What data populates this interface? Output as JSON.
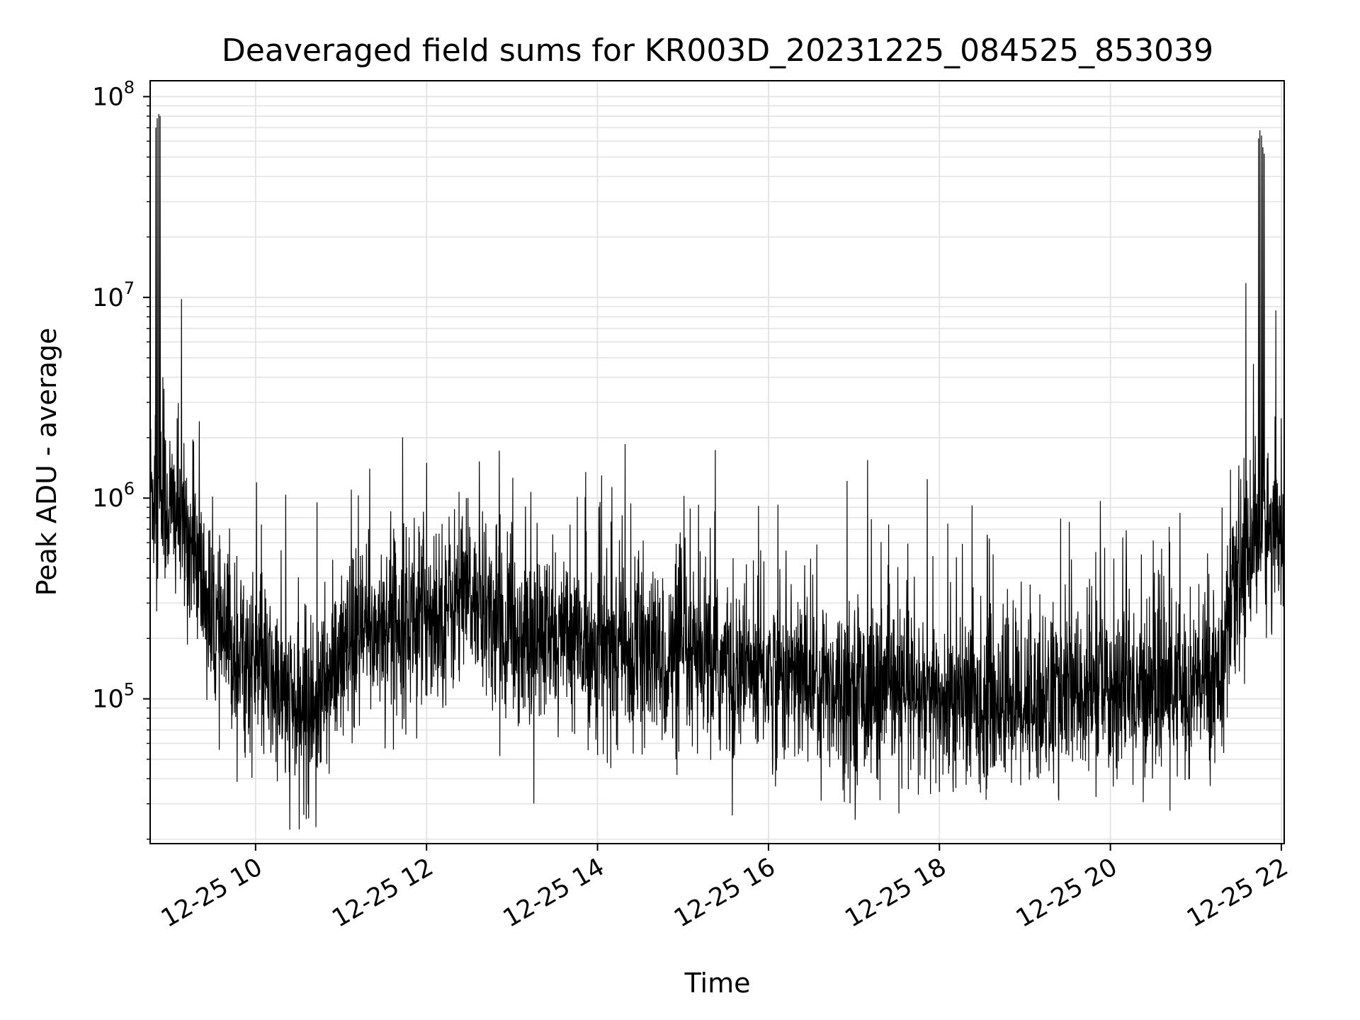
{
  "chart_data": {
    "type": "line",
    "title": "Deaveraged field sums for KR003D_20231225_084525_853039",
    "xlabel": "Time",
    "ylabel": "Peak ADU - average",
    "y_scale": "log",
    "x_range": [
      "2023-12-25 08:46",
      "2023-12-25 22:02"
    ],
    "ylim": [
      19000,
      120000000
    ],
    "grid": true,
    "line_color": "#000000",
    "grid_color": "#e3e3e3",
    "x_ticks": [
      {
        "time": "2023-12-25 10:00",
        "label": "12-25 10"
      },
      {
        "time": "2023-12-25 12:00",
        "label": "12-25 12"
      },
      {
        "time": "2023-12-25 14:00",
        "label": "12-25 14"
      },
      {
        "time": "2023-12-25 16:00",
        "label": "12-25 16"
      },
      {
        "time": "2023-12-25 18:00",
        "label": "12-25 18"
      },
      {
        "time": "2023-12-25 20:00",
        "label": "12-25 20"
      },
      {
        "time": "2023-12-25 22:00",
        "label": "12-25 22"
      }
    ],
    "y_ticks": [
      {
        "value": 100000,
        "base": "10",
        "exp": "5"
      },
      {
        "value": 1000000,
        "base": "10",
        "exp": "6"
      },
      {
        "value": 10000000,
        "base": "10",
        "exp": "7"
      },
      {
        "value": 100000000,
        "base": "10",
        "exp": "8"
      }
    ],
    "series": [
      {
        "median_trend": [
          [
            "2023-12-25 08:46",
            1100000
          ],
          [
            "2023-12-25 09:00",
            900000
          ],
          [
            "2023-12-25 09:10",
            700000
          ],
          [
            "2023-12-25 09:20",
            450000
          ],
          [
            "2023-12-25 09:30",
            220000
          ],
          [
            "2023-12-25 09:45",
            170000
          ],
          [
            "2023-12-25 10:00",
            150000
          ],
          [
            "2023-12-25 10:15",
            110000
          ],
          [
            "2023-12-25 10:30",
            85000
          ],
          [
            "2023-12-25 10:45",
            100000
          ],
          [
            "2023-12-25 11:00",
            150000
          ],
          [
            "2023-12-25 11:15",
            200000
          ],
          [
            "2023-12-25 11:30",
            240000
          ],
          [
            "2023-12-25 12:00",
            260000
          ],
          [
            "2023-12-25 12:30",
            320000
          ],
          [
            "2023-12-25 12:45",
            260000
          ],
          [
            "2023-12-25 13:00",
            210000
          ],
          [
            "2023-12-25 14:00",
            180000
          ],
          [
            "2023-12-25 15:00",
            150000
          ],
          [
            "2023-12-25 16:00",
            135000
          ],
          [
            "2023-12-25 17:00",
            115000
          ],
          [
            "2023-12-25 18:00",
            95000
          ],
          [
            "2023-12-25 19:00",
            100000
          ],
          [
            "2023-12-25 20:00",
            110000
          ],
          [
            "2023-12-25 21:00",
            115000
          ],
          [
            "2023-12-25 21:20",
            150000
          ],
          [
            "2023-12-25 21:30",
            400000
          ],
          [
            "2023-12-25 21:40",
            650000
          ],
          [
            "2023-12-25 22:02",
            750000
          ]
        ],
        "spikes": [
          [
            "2023-12-25 08:50",
            70000000
          ],
          [
            "2023-12-25 08:51",
            78000000
          ],
          [
            "2023-12-25 08:52",
            82000000
          ],
          [
            "2023-12-25 08:53",
            80000000
          ],
          [
            "2023-12-25 08:55",
            4000000
          ],
          [
            "2023-12-25 09:08",
            9800000
          ],
          [
            "2023-12-25 09:05",
            2500000
          ],
          [
            "2023-12-25 11:20",
            1400000
          ],
          [
            "2023-12-25 12:00",
            1500000
          ],
          [
            "2023-12-25 21:35",
            11800000
          ],
          [
            "2023-12-25 21:44",
            62000000
          ],
          [
            "2023-12-25 21:45",
            68000000
          ],
          [
            "2023-12-25 21:46",
            64000000
          ],
          [
            "2023-12-25 21:47",
            56000000
          ],
          [
            "2023-12-25 21:48",
            52000000
          ],
          [
            "2023-12-25 22:00",
            2500000
          ]
        ]
      }
    ]
  }
}
